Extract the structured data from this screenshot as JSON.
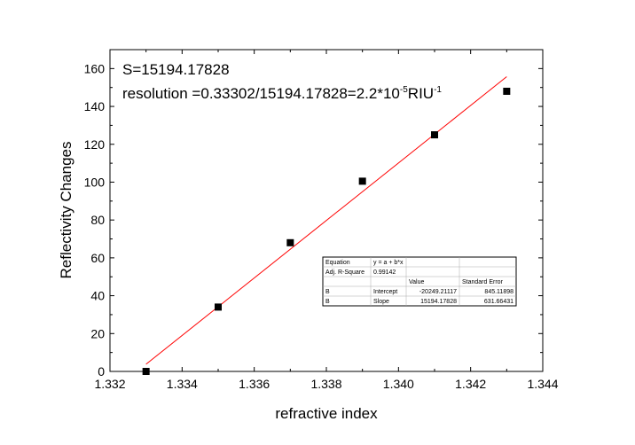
{
  "chart_data": {
    "type": "scatter",
    "xlabel": "refractive index",
    "ylabel": "Reflectivity Changes",
    "xlim": [
      1.332,
      1.344
    ],
    "ylim": [
      0,
      170
    ],
    "xticks": [
      1.332,
      1.334,
      1.336,
      1.338,
      1.34,
      1.342,
      1.344
    ],
    "xtick_labels": [
      "1.332",
      "1.334",
      "1.336",
      "1.338",
      "1.340",
      "1.342",
      "1.344"
    ],
    "yticks": [
      0,
      20,
      40,
      60,
      80,
      100,
      120,
      140,
      160
    ],
    "ytick_labels": [
      "0",
      "20",
      "40",
      "60",
      "80",
      "100",
      "120",
      "140",
      "160"
    ],
    "grid": false,
    "series": [
      {
        "type": "scatter",
        "marker": "square",
        "color": "#000000",
        "x": [
          1.333,
          1.335,
          1.337,
          1.339,
          1.341,
          1.343
        ],
        "y": [
          0,
          34,
          68,
          100.5,
          125,
          148
        ]
      },
      {
        "type": "line",
        "color": "#ff0000",
        "x": [
          1.333,
          1.343
        ],
        "y": [
          3.8,
          155.7
        ]
      }
    ],
    "annotations": {
      "slope_text": "S=15194.17828",
      "resolution_prefix": "resolution =0.33302/15194.17828=2.2*10",
      "resolution_exp": "-5",
      "resolution_unit": "RIU",
      "resolution_unit_exp": "-1"
    },
    "fit_table": {
      "rows": [
        [
          "Equation",
          "y = a + b*x",
          "",
          ""
        ],
        [
          "Adj. R-Square",
          "0.99142",
          "",
          ""
        ],
        [
          "",
          "",
          "Value",
          "Standard Error"
        ],
        [
          "B",
          "Intercept",
          "-20249.21117",
          "845.11898"
        ],
        [
          "B",
          "Slope",
          "15194.17828",
          "631.66431"
        ]
      ]
    }
  }
}
